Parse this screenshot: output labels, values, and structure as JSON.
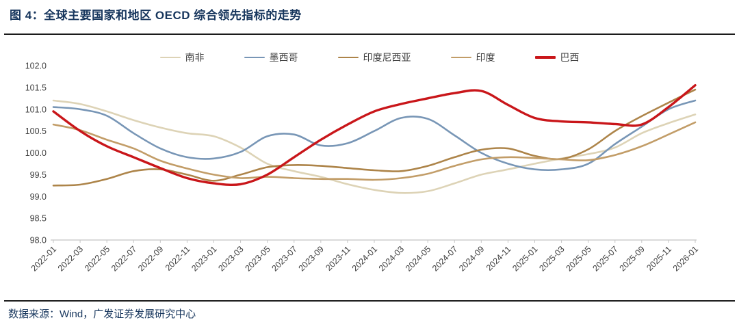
{
  "header": {
    "title": "图 4：全球主要国家和地区 OECD 综合领先指标的走势"
  },
  "footer": {
    "source": "数据来源：Wind，广发证券发展研究中心"
  },
  "chart_data": {
    "type": "line",
    "title": "全球主要国家和地区OECD综合领先指标",
    "xlabel": "",
    "ylabel": "",
    "ylim": [
      98.0,
      102.0
    ],
    "grid": false,
    "legend_position": "top-center",
    "axis_color": "#c4c4c4",
    "tick_text_color": "#404040",
    "y_ticks": [
      "102.0",
      "101.5",
      "101.0",
      "100.5",
      "100.0",
      "99.5",
      "99.0",
      "98.5",
      "98.0"
    ],
    "x_labels": [
      "2022-01",
      "2022-03",
      "2022-05",
      "2022-07",
      "2022-09",
      "2022-11",
      "2023-01",
      "2023-03",
      "2023-05",
      "2023-07",
      "2023-09",
      "2023-11",
      "2024-01",
      "2024-03",
      "2024-05",
      "2024-07",
      "2024-09",
      "2024-11",
      "2025-01",
      "2025-03",
      "2025-05",
      "2025-07",
      "2025-09",
      "2025-11",
      "2026-01"
    ],
    "series": [
      {
        "name": "南非",
        "key": "south-africa",
        "color": "#ddd3b6",
        "width": 2.6,
        "values": [
          101.2,
          101.12,
          100.95,
          100.75,
          100.58,
          100.45,
          100.38,
          100.12,
          99.75,
          99.58,
          99.45,
          99.28,
          99.15,
          99.08,
          99.12,
          99.3,
          99.5,
          99.62,
          99.75,
          99.87,
          99.97,
          100.12,
          100.45,
          100.68,
          100.88
        ]
      },
      {
        "name": "墨西哥",
        "key": "mexico",
        "color": "#7896b6",
        "width": 2.6,
        "values": [
          101.05,
          101.0,
          100.85,
          100.45,
          100.1,
          99.9,
          99.87,
          100.02,
          100.38,
          100.42,
          100.17,
          100.22,
          100.5,
          100.8,
          100.78,
          100.4,
          100.0,
          99.75,
          99.62,
          99.62,
          99.75,
          100.2,
          100.6,
          101.0,
          101.2
        ]
      },
      {
        "name": "印度尼西亚",
        "key": "indonesia",
        "color": "#ad8449",
        "width": 2.6,
        "values": [
          99.25,
          99.27,
          99.4,
          99.58,
          99.62,
          99.5,
          99.36,
          99.5,
          99.67,
          99.72,
          99.7,
          99.65,
          99.6,
          99.58,
          99.7,
          99.9,
          100.07,
          100.1,
          99.93,
          99.86,
          100.08,
          100.5,
          100.84,
          101.15,
          101.45
        ]
      },
      {
        "name": "印度",
        "key": "india",
        "color": "#c29d68",
        "width": 2.6,
        "values": [
          100.65,
          100.52,
          100.3,
          100.1,
          99.82,
          99.64,
          99.5,
          99.42,
          99.45,
          99.42,
          99.4,
          99.4,
          99.38,
          99.42,
          99.52,
          99.7,
          99.85,
          99.9,
          99.88,
          99.85,
          99.83,
          99.95,
          100.15,
          100.42,
          100.7
        ]
      },
      {
        "name": "巴西",
        "key": "brazil",
        "color": "#c9161a",
        "width": 3.4,
        "values": [
          100.95,
          100.5,
          100.15,
          99.9,
          99.65,
          99.42,
          99.3,
          99.28,
          99.5,
          99.9,
          100.3,
          100.65,
          100.95,
          101.12,
          101.25,
          101.37,
          101.42,
          101.1,
          100.8,
          100.72,
          100.7,
          100.66,
          100.65,
          101.05,
          101.55
        ]
      }
    ]
  }
}
